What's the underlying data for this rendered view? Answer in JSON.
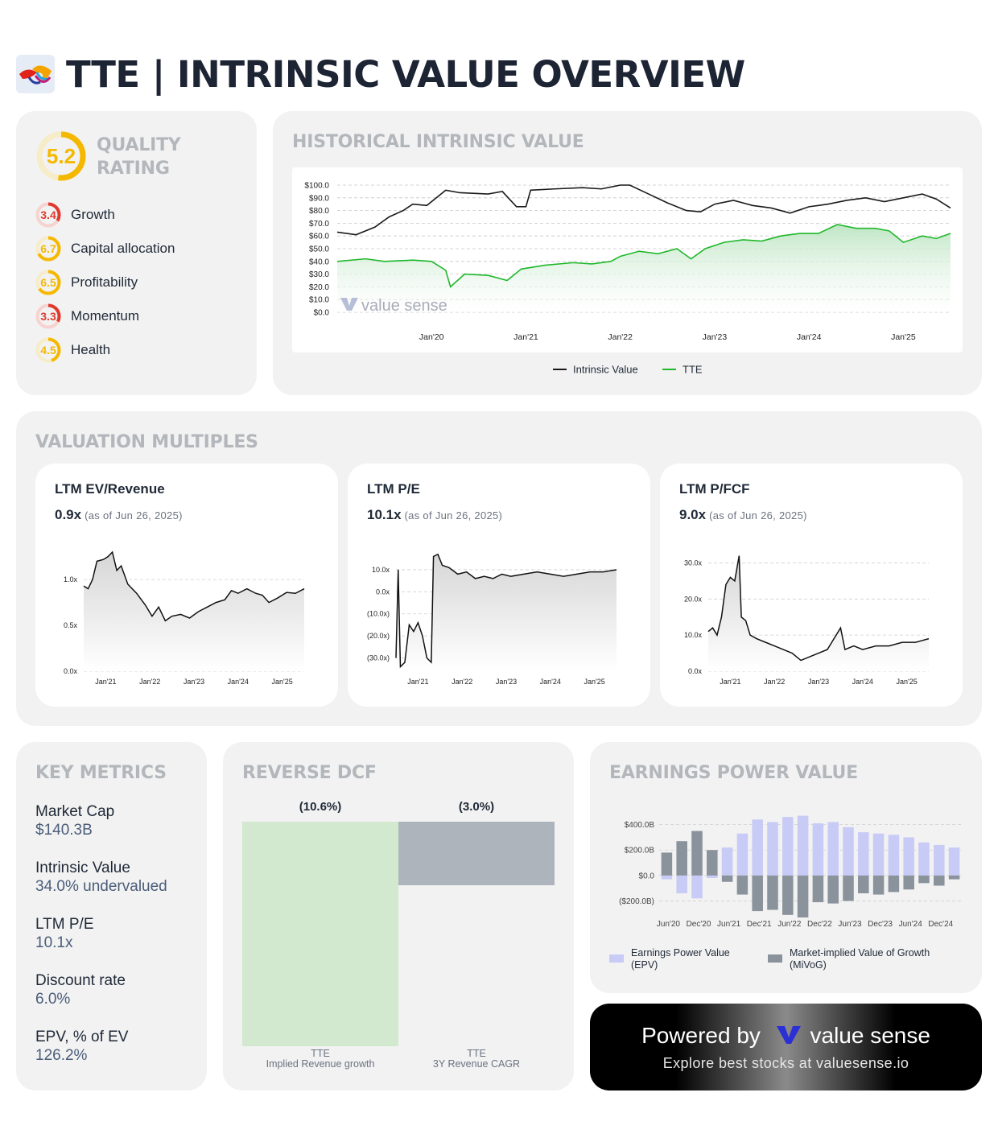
{
  "header": {
    "title": "TTE | INTRINSIC VALUE OVERVIEW"
  },
  "colors": {
    "black_line": "#1a1a1a",
    "green_line": "#1fb82a",
    "green_fill": "#bfe6c4",
    "yellow": "#f5b800",
    "red": "#e03a2f",
    "epv": "#c8cbf5",
    "mivog": "#8a929c",
    "dcf_green": "#d3e9cf",
    "dcf_gray": "#aeb4bc"
  },
  "quality": {
    "title": "QUALITY RATING",
    "score": "5.2",
    "score_value": 5.2,
    "items": [
      {
        "label": "Growth",
        "value": "3.4",
        "color": "#e03a2f",
        "score": 3.4
      },
      {
        "label": "Capital allocation",
        "value": "6.7",
        "color": "#f5b800",
        "score": 6.7
      },
      {
        "label": "Profitability",
        "value": "6.5",
        "color": "#f5b800",
        "score": 6.5
      },
      {
        "label": "Momentum",
        "value": "3.3",
        "color": "#e03a2f",
        "score": 3.3
      },
      {
        "label": "Health",
        "value": "4.5",
        "color": "#f5b800",
        "score": 4.5
      }
    ]
  },
  "historical": {
    "title": "HISTORICAL INTRINSIC VALUE",
    "watermark": "value sense",
    "chart_data": {
      "type": "line",
      "y_ticks": [
        "$100.0",
        "$90.0",
        "$80.0",
        "$70.0",
        "$60.0",
        "$50.0",
        "$40.0",
        "$30.0",
        "$20.0",
        "$10.0",
        "$0.0"
      ],
      "x_ticks": [
        "Jan'20",
        "Jan'21",
        "Jan'22",
        "Jan'23",
        "Jan'24",
        "Jan'25"
      ],
      "ylim": [
        0,
        100
      ],
      "series": [
        {
          "name": "Intrinsic Value",
          "color": "#1a1a1a",
          "points": [
            [
              2019.0,
              63
            ],
            [
              2019.2,
              61
            ],
            [
              2019.4,
              67
            ],
            [
              2019.55,
              75
            ],
            [
              2019.7,
              80
            ],
            [
              2019.8,
              85
            ],
            [
              2019.95,
              84
            ],
            [
              2020.15,
              96
            ],
            [
              2020.3,
              94
            ],
            [
              2020.6,
              93
            ],
            [
              2020.75,
              95
            ],
            [
              2020.9,
              83
            ],
            [
              2021.0,
              83
            ],
            [
              2021.05,
              96
            ],
            [
              2021.3,
              97
            ],
            [
              2021.6,
              98
            ],
            [
              2021.8,
              97
            ],
            [
              2022.0,
              100
            ],
            [
              2022.1,
              100
            ],
            [
              2022.3,
              93
            ],
            [
              2022.5,
              86
            ],
            [
              2022.7,
              80
            ],
            [
              2022.85,
              79
            ],
            [
              2023.0,
              85
            ],
            [
              2023.2,
              88
            ],
            [
              2023.4,
              84
            ],
            [
              2023.6,
              82
            ],
            [
              2023.8,
              78
            ],
            [
              2024.0,
              83
            ],
            [
              2024.2,
              85
            ],
            [
              2024.4,
              88
            ],
            [
              2024.6,
              90
            ],
            [
              2024.8,
              87
            ],
            [
              2025.0,
              90
            ],
            [
              2025.2,
              93
            ],
            [
              2025.35,
              89
            ],
            [
              2025.5,
              82
            ]
          ]
        },
        {
          "name": "TTE",
          "color": "#1fb82a",
          "points": [
            [
              2019.0,
              40
            ],
            [
              2019.3,
              42
            ],
            [
              2019.5,
              40
            ],
            [
              2019.8,
              41
            ],
            [
              2020.0,
              40
            ],
            [
              2020.15,
              33
            ],
            [
              2020.2,
              20
            ],
            [
              2020.35,
              30
            ],
            [
              2020.6,
              29
            ],
            [
              2020.8,
              25
            ],
            [
              2020.95,
              34
            ],
            [
              2021.2,
              37
            ],
            [
              2021.5,
              39
            ],
            [
              2021.7,
              38
            ],
            [
              2021.9,
              40
            ],
            [
              2022.0,
              44
            ],
            [
              2022.2,
              48
            ],
            [
              2022.4,
              46
            ],
            [
              2022.6,
              50
            ],
            [
              2022.75,
              42
            ],
            [
              2022.9,
              50
            ],
            [
              2023.1,
              55
            ],
            [
              2023.3,
              57
            ],
            [
              2023.5,
              56
            ],
            [
              2023.7,
              60
            ],
            [
              2023.9,
              62
            ],
            [
              2024.1,
              62
            ],
            [
              2024.3,
              69
            ],
            [
              2024.5,
              66
            ],
            [
              2024.7,
              66
            ],
            [
              2024.85,
              64
            ],
            [
              2025.0,
              55
            ],
            [
              2025.2,
              60
            ],
            [
              2025.35,
              58
            ],
            [
              2025.5,
              62
            ]
          ]
        }
      ],
      "legend": [
        {
          "name": "Intrinsic Value",
          "color": "#1a1a1a"
        },
        {
          "name": "TTE",
          "color": "#1fb82a"
        }
      ],
      "legend_position": "bottom"
    }
  },
  "valuation": {
    "title": "VALUATION MULTIPLES",
    "charts": [
      {
        "title": "LTM EV/Revenue",
        "value": "0.9x",
        "asof": "(as of Jun 26, 2025)",
        "chart_data": {
          "type": "area",
          "y_ticks": [
            "1.0x",
            "0.5x",
            "0.0x"
          ],
          "y_tick_values": [
            1.0,
            0.5,
            0.0
          ],
          "ylim": [
            0,
            1.3
          ],
          "x_ticks": [
            "Jan'21",
            "Jan'22",
            "Jan'23",
            "Jan'24",
            "Jan'25"
          ],
          "points": [
            [
              2020.5,
              0.93
            ],
            [
              2020.6,
              0.9
            ],
            [
              2020.7,
              1.0
            ],
            [
              2020.8,
              1.2
            ],
            [
              2020.95,
              1.22
            ],
            [
              2021.05,
              1.25
            ],
            [
              2021.15,
              1.3
            ],
            [
              2021.25,
              1.1
            ],
            [
              2021.35,
              1.15
            ],
            [
              2021.5,
              0.95
            ],
            [
              2021.7,
              0.85
            ],
            [
              2021.9,
              0.72
            ],
            [
              2022.05,
              0.6
            ],
            [
              2022.2,
              0.7
            ],
            [
              2022.35,
              0.55
            ],
            [
              2022.5,
              0.6
            ],
            [
              2022.7,
              0.62
            ],
            [
              2022.9,
              0.58
            ],
            [
              2023.1,
              0.65
            ],
            [
              2023.3,
              0.7
            ],
            [
              2023.5,
              0.75
            ],
            [
              2023.7,
              0.78
            ],
            [
              2023.85,
              0.88
            ],
            [
              2024.0,
              0.85
            ],
            [
              2024.2,
              0.9
            ],
            [
              2024.4,
              0.85
            ],
            [
              2024.55,
              0.83
            ],
            [
              2024.7,
              0.75
            ],
            [
              2024.9,
              0.8
            ],
            [
              2025.1,
              0.86
            ],
            [
              2025.3,
              0.85
            ],
            [
              2025.5,
              0.9
            ]
          ]
        }
      },
      {
        "title": "LTM P/E",
        "value": "10.1x",
        "asof": "(as of Jun 26, 2025)",
        "chart_data": {
          "type": "area",
          "y_ticks": [
            "10.0x",
            "0.0x",
            "(10.0x)",
            "(20.0x)",
            "(30.0x)"
          ],
          "y_tick_values": [
            10,
            0,
            -10,
            -20,
            -30
          ],
          "ylim": [
            -36,
            18
          ],
          "x_ticks": [
            "Jan'21",
            "Jan'22",
            "Jan'23",
            "Jan'24",
            "Jan'25"
          ],
          "points": [
            [
              2020.5,
              -30
            ],
            [
              2020.55,
              10
            ],
            [
              2020.6,
              -34
            ],
            [
              2020.7,
              -32
            ],
            [
              2020.8,
              -15
            ],
            [
              2020.9,
              -18
            ],
            [
              2021.0,
              -14
            ],
            [
              2021.1,
              -20
            ],
            [
              2021.2,
              -30
            ],
            [
              2021.3,
              -32
            ],
            [
              2021.35,
              16
            ],
            [
              2021.45,
              17
            ],
            [
              2021.55,
              12
            ],
            [
              2021.7,
              11
            ],
            [
              2021.9,
              8
            ],
            [
              2022.1,
              9
            ],
            [
              2022.3,
              6
            ],
            [
              2022.5,
              7
            ],
            [
              2022.7,
              6
            ],
            [
              2022.9,
              8
            ],
            [
              2023.1,
              7
            ],
            [
              2023.4,
              8
            ],
            [
              2023.7,
              9
            ],
            [
              2024.0,
              8
            ],
            [
              2024.3,
              7
            ],
            [
              2024.6,
              8
            ],
            [
              2024.9,
              9
            ],
            [
              2025.2,
              9
            ],
            [
              2025.5,
              10
            ]
          ]
        }
      },
      {
        "title": "LTM P/FCF",
        "value": "9.0x",
        "asof": "(as of Jun 26, 2025)",
        "chart_data": {
          "type": "area",
          "y_ticks": [
            "30.0x",
            "20.0x",
            "10.0x",
            "0.0x"
          ],
          "y_tick_values": [
            30,
            20,
            10,
            0
          ],
          "ylim": [
            0,
            33
          ],
          "x_ticks": [
            "Jan'21",
            "Jan'22",
            "Jan'23",
            "Jan'24",
            "Jan'25"
          ],
          "points": [
            [
              2020.5,
              11
            ],
            [
              2020.6,
              12
            ],
            [
              2020.7,
              10
            ],
            [
              2020.8,
              15
            ],
            [
              2020.9,
              24
            ],
            [
              2021.0,
              26
            ],
            [
              2021.1,
              25
            ],
            [
              2021.2,
              32
            ],
            [
              2021.25,
              15
            ],
            [
              2021.35,
              14
            ],
            [
              2021.45,
              10
            ],
            [
              2021.6,
              9
            ],
            [
              2021.8,
              8
            ],
            [
              2022.0,
              7
            ],
            [
              2022.2,
              6
            ],
            [
              2022.4,
              5
            ],
            [
              2022.6,
              3
            ],
            [
              2022.8,
              4
            ],
            [
              2023.0,
              5
            ],
            [
              2023.2,
              6
            ],
            [
              2023.35,
              9
            ],
            [
              2023.5,
              12
            ],
            [
              2023.6,
              6
            ],
            [
              2023.8,
              7
            ],
            [
              2024.0,
              6
            ],
            [
              2024.3,
              7
            ],
            [
              2024.6,
              7
            ],
            [
              2024.9,
              8
            ],
            [
              2025.2,
              8
            ],
            [
              2025.5,
              9
            ]
          ]
        }
      }
    ]
  },
  "key_metrics": {
    "title": "KEY METRICS",
    "items": [
      {
        "key": "Market Cap",
        "value": "$140.3B"
      },
      {
        "key": "Intrinsic Value",
        "value": "34.0% undervalued"
      },
      {
        "key": "LTM P/E",
        "value": "10.1x"
      },
      {
        "key": "Discount rate",
        "value": "6.0%"
      },
      {
        "key": "EPV, % of EV",
        "value": "126.2%"
      }
    ]
  },
  "reverse_dcf": {
    "title": "REVERSE DCF",
    "chart_data": {
      "type": "bar",
      "categories": [
        "TTE\nImplied Revenue growth",
        "TTE\n3Y Revenue CAGR"
      ],
      "category_labels": [
        [
          "TTE",
          "Implied Revenue growth"
        ],
        [
          "TTE",
          "3Y Revenue CAGR"
        ]
      ],
      "values": [
        -10.6,
        -3.0
      ],
      "value_labels": [
        "(10.6%)",
        "(3.0%)"
      ]
    }
  },
  "epv": {
    "title": "EARNINGS POWER VALUE",
    "chart_data": {
      "type": "bar",
      "y_ticks": [
        "$400.0B",
        "$200.0B",
        "$0.0",
        "($200.0B)"
      ],
      "y_tick_values": [
        400,
        200,
        0,
        -200
      ],
      "ylim": [
        -330,
        480
      ],
      "x_ticks": [
        "Jun'20",
        "Dec'20",
        "Jun'21",
        "Dec'21",
        "Jun'22",
        "Dec'22",
        "Jun'23",
        "Dec'23",
        "Jun'24",
        "Dec'24"
      ],
      "series": [
        {
          "name": "Earnings Power Value (EPV)",
          "color": "#c8cbf5",
          "values": [
            -30,
            -140,
            -180,
            -20,
            220,
            330,
            440,
            420,
            460,
            470,
            410,
            420,
            380,
            340,
            330,
            320,
            300,
            260,
            240,
            220
          ]
        },
        {
          "name": "Market-implied Value of Growth (MiVoG)",
          "color": "#8a929c",
          "values": [
            180,
            270,
            350,
            200,
            -50,
            -150,
            -280,
            -270,
            -310,
            -330,
            -210,
            -220,
            -200,
            -140,
            -150,
            -130,
            -110,
            -60,
            -80,
            -30
          ]
        }
      ],
      "legend": [
        {
          "name": "Earnings Power Value (EPV)",
          "lines": [
            "Earnings Power Value",
            "(EPV)"
          ]
        },
        {
          "name": "Market-implied Value of Growth (MiVoG)",
          "lines": [
            "Market-implied Value of Growth",
            "(MiVoG)"
          ]
        }
      ]
    }
  },
  "powered": {
    "label": "Powered by",
    "brand": "value sense",
    "sub": "Explore best stocks at valuesense.io"
  }
}
